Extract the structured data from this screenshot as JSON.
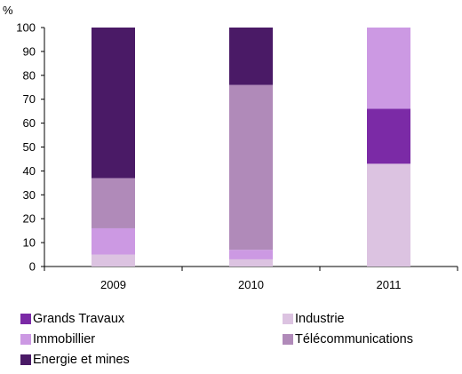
{
  "chart_data": {
    "type": "bar",
    "stacked": true,
    "ylabel": "%",
    "ylim": [
      0,
      100
    ],
    "yticks": [
      0,
      10,
      20,
      30,
      40,
      50,
      60,
      70,
      80,
      90,
      100
    ],
    "categories": [
      "2009",
      "2010",
      "2011"
    ],
    "series": [
      {
        "name": "Industrie",
        "color": "#dcc3e1",
        "values": [
          5,
          3,
          43
        ]
      },
      {
        "name": "Grands Travaux",
        "color": "#7b2aa6",
        "values": [
          0,
          0,
          23
        ]
      },
      {
        "name": "Immobillier",
        "color": "#cc99e3",
        "values": [
          11,
          4,
          34
        ]
      },
      {
        "name": "Télécommunications",
        "color": "#b08ab9",
        "values": [
          21,
          69,
          0
        ]
      },
      {
        "name": "Energie et mines",
        "color": "#4a1a66",
        "values": [
          63,
          24,
          0
        ]
      }
    ],
    "legend": [
      {
        "name": "Grands Travaux",
        "color": "#7b2aa6"
      },
      {
        "name": "Industrie",
        "color": "#dcc3e1"
      },
      {
        "name": "Immobillier",
        "color": "#cc99e3"
      },
      {
        "name": "Télécommunications",
        "color": "#b08ab9"
      },
      {
        "name": "Energie et mines",
        "color": "#4a1a66"
      }
    ],
    "legend_position": "bottom",
    "grid": false
  }
}
